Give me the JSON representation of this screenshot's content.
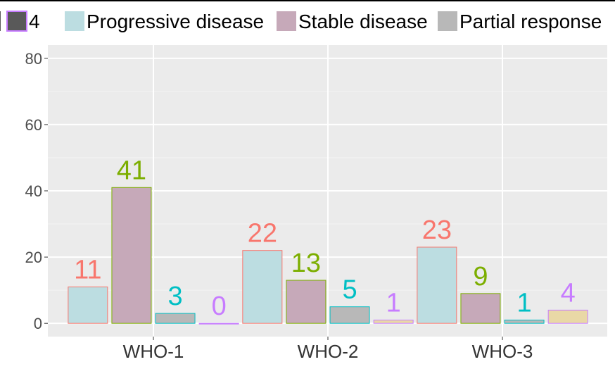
{
  "chart_data": {
    "type": "bar",
    "categories": [
      "WHO-1",
      "WHO-2",
      "WHO-3"
    ],
    "series": [
      {
        "name": "Progressive disease",
        "values": [
          11,
          22,
          23
        ],
        "fill": "#bcdde1",
        "outline": "#f8766d",
        "label_color": "#f8766d"
      },
      {
        "name": "Stable disease",
        "values": [
          41,
          13,
          9
        ],
        "fill": "#c6a9b9",
        "outline": "#7cae00",
        "label_color": "#7cae00"
      },
      {
        "name": "Partial response",
        "values": [
          3,
          5,
          1
        ],
        "fill": "#b8b8b8",
        "outline": "#00bfc4",
        "label_color": "#00bfc4"
      },
      {
        "name": "",
        "values": [
          0,
          1,
          4
        ],
        "fill": "#e9d8a6",
        "outline": "#c77cff",
        "label_color": "#c77cff"
      }
    ],
    "y_ticks": [
      0,
      20,
      40,
      60,
      80
    ],
    "ylim": [
      -4,
      84
    ],
    "grid": true,
    "panel_background": "#ebebeb",
    "legend": {
      "position": "top",
      "items": [
        {
          "label": "4",
          "fill": "#595959",
          "outline": "#c77cff"
        },
        {
          "label": "Progressive disease",
          "fill": "#bcdde1"
        },
        {
          "label": "Stable disease",
          "fill": "#c6a9b9"
        },
        {
          "label": "Partial response",
          "fill": "#b8b8b8"
        }
      ]
    },
    "title": "",
    "xlabel": "",
    "ylabel": ""
  }
}
